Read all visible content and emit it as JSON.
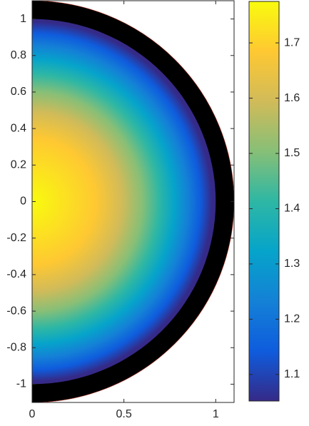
{
  "chart_data": {
    "type": "surface",
    "xlim": [
      0,
      1.1
    ],
    "xticks": [
      0,
      0.5,
      1
    ],
    "ylim": [
      -1.1,
      1.1
    ],
    "yticks": [
      -1,
      -0.8,
      -0.6,
      -0.4,
      -0.2,
      0,
      0.2,
      0.4,
      0.6,
      0.8,
      1
    ],
    "colorbar": {
      "lim": [
        1.052,
        1.775
      ],
      "ticks": [
        1.1,
        1.2,
        1.3,
        1.4,
        1.5,
        1.6,
        1.7
      ]
    },
    "colormap": [
      "#352a87",
      "#0f5cdd",
      "#1481d6",
      "#06a4ca",
      "#2eb7a4",
      "#87bf77",
      "#d1bb59",
      "#fec832",
      "#f9fb0e"
    ]
  }
}
